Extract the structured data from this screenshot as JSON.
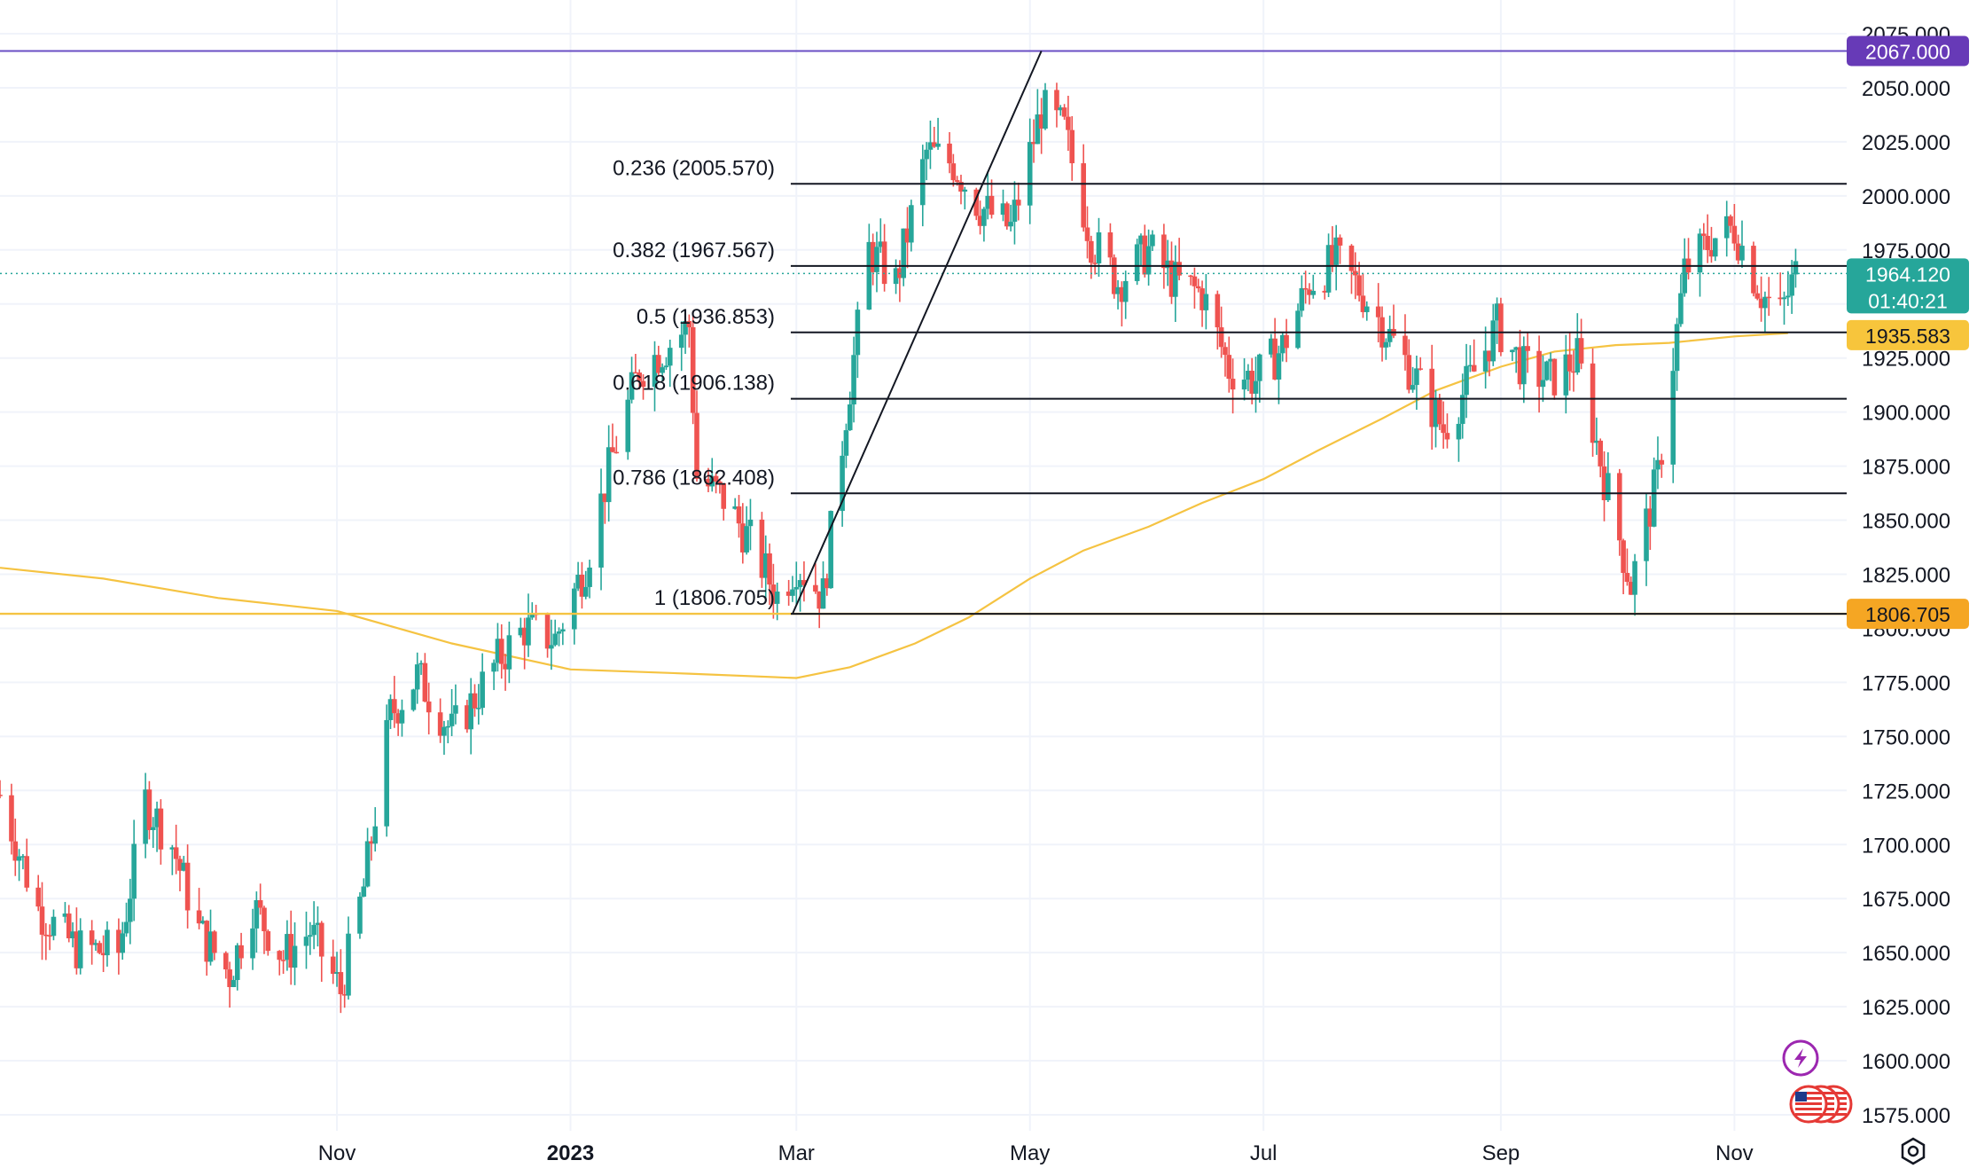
{
  "colors": {
    "up": "#26a69a",
    "down": "#ef5350",
    "ma": "#f5c342",
    "fib": "#131722",
    "high_line": "#6a4fc4",
    "grid": "#f0f3fa",
    "price_badge": "#26a69a",
    "ma_badge": "#f7c53c",
    "low_badge": "#f5a623",
    "high_badge": "#673ab7"
  },
  "icons": {
    "lightning": "lightning-icon",
    "flag": "us-flag-icon",
    "settings": "gear-icon"
  },
  "chart_data": {
    "type": "candlestick",
    "instrument_note": "",
    "y_axis": {
      "ticks": [
        "1575.000",
        "1600.000",
        "1625.000",
        "1650.000",
        "1675.000",
        "1700.000",
        "1725.000",
        "1750.000",
        "1775.000",
        "1800.000",
        "1825.000",
        "1850.000",
        "1875.000",
        "1900.000",
        "1925.000",
        "1950.000",
        "1975.000",
        "2000.000",
        "2025.000",
        "2050.000",
        "2075.000"
      ],
      "ylim": [
        1570,
        2085
      ]
    },
    "x_axis": {
      "ticks": [
        {
          "label": "Nov",
          "date": "2022-11-01",
          "bold": false
        },
        {
          "label": "2023",
          "date": "2023-01-01",
          "bold": true
        },
        {
          "label": "Mar",
          "date": "2023-03-01",
          "bold": false
        },
        {
          "label": "May",
          "date": "2023-05-01",
          "bold": false
        },
        {
          "label": "Jul",
          "date": "2023-07-01",
          "bold": false
        },
        {
          "label": "Sep",
          "date": "2023-09-01",
          "bold": false
        },
        {
          "label": "Nov",
          "date": "2023-11-01",
          "bold": false
        }
      ],
      "xlim": [
        "2022-08-05",
        "2023-11-25"
      ]
    },
    "fibonacci": {
      "from": {
        "date": "2023-02-28",
        "price": 1806.705
      },
      "to": {
        "date": "2023-05-04",
        "price": 2067.0
      },
      "levels": [
        {
          "ratio": "0.236",
          "price": 2005.57,
          "label": "0.236 (2005.570)"
        },
        {
          "ratio": "0.382",
          "price": 1967.567,
          "label": "0.382 (1967.567)"
        },
        {
          "ratio": "0.5",
          "price": 1936.853,
          "label": "0.5 (1936.853)"
        },
        {
          "ratio": "0.618",
          "price": 1906.138,
          "label": "0.618 (1906.138)"
        },
        {
          "ratio": "0.786",
          "price": 1862.408,
          "label": "0.786 (1862.408)"
        },
        {
          "ratio": "1",
          "price": 1806.705,
          "label": "1 (1806.705)"
        }
      ]
    },
    "horizontal_lines": [
      {
        "name": "high",
        "price": 2067.0
      },
      {
        "name": "low",
        "price": 1806.705
      }
    ],
    "current_price": {
      "value": 1964.12,
      "label": "1964.120",
      "countdown": "01:40:21"
    },
    "ma_last": {
      "value": 1935.583,
      "label": "1935.583"
    },
    "high_label": "2067.000",
    "low_label": "1806.705",
    "ma_series": [
      [
        "2022-08-05",
        1828
      ],
      [
        "2022-09-01",
        1823
      ],
      [
        "2022-10-01",
        1814
      ],
      [
        "2022-11-01",
        1808
      ],
      [
        "2022-12-01",
        1793
      ],
      [
        "2023-01-01",
        1781
      ],
      [
        "2023-02-01",
        1779
      ],
      [
        "2023-03-01",
        1777
      ],
      [
        "2023-03-15",
        1782
      ],
      [
        "2023-04-01",
        1793
      ],
      [
        "2023-04-15",
        1805
      ],
      [
        "2023-05-01",
        1823
      ],
      [
        "2023-05-15",
        1836
      ],
      [
        "2023-06-01",
        1847
      ],
      [
        "2023-06-15",
        1858
      ],
      [
        "2023-07-01",
        1869
      ],
      [
        "2023-07-15",
        1882
      ],
      [
        "2023-08-01",
        1897
      ],
      [
        "2023-08-15",
        1910
      ],
      [
        "2023-09-01",
        1921
      ],
      [
        "2023-09-15",
        1928
      ],
      [
        "2023-10-01",
        1931
      ],
      [
        "2023-10-15",
        1932
      ],
      [
        "2023-11-01",
        1935
      ],
      [
        "2023-11-15",
        1936.5
      ]
    ],
    "candles_anchor": [
      [
        "2022-08-05",
        1723
      ],
      [
        "2022-08-15",
        1670
      ],
      [
        "2022-08-25",
        1652
      ],
      [
        "2022-09-05",
        1650
      ],
      [
        "2022-09-12",
        1720
      ],
      [
        "2022-09-19",
        1700
      ],
      [
        "2022-09-26",
        1660
      ],
      [
        "2022-10-04",
        1640
      ],
      [
        "2022-10-10",
        1672
      ],
      [
        "2022-10-18",
        1648
      ],
      [
        "2022-10-25",
        1660
      ],
      [
        "2022-11-02",
        1632
      ],
      [
        "2022-11-08",
        1680
      ],
      [
        "2022-11-15",
        1760
      ],
      [
        "2022-11-22",
        1778
      ],
      [
        "2022-12-01",
        1752
      ],
      [
        "2022-12-06",
        1765
      ],
      [
        "2022-12-13",
        1785
      ],
      [
        "2022-12-20",
        1800
      ],
      [
        "2022-12-28",
        1795
      ],
      [
        "2023-01-05",
        1830
      ],
      [
        "2023-01-12",
        1880
      ],
      [
        "2023-01-19",
        1920
      ],
      [
        "2023-01-26",
        1930
      ],
      [
        "2023-02-01",
        1940
      ],
      [
        "2023-02-03",
        1870
      ],
      [
        "2023-02-10",
        1860
      ],
      [
        "2023-02-17",
        1840
      ],
      [
        "2023-02-24",
        1815
      ],
      [
        "2023-03-01",
        1830
      ],
      [
        "2023-03-08",
        1815
      ],
      [
        "2023-03-14",
        1900
      ],
      [
        "2023-03-20",
        1975
      ],
      [
        "2023-03-27",
        1960
      ],
      [
        "2023-04-04",
        2020
      ],
      [
        "2023-04-11",
        2015
      ],
      [
        "2023-04-18",
        1995
      ],
      [
        "2023-04-26",
        1985
      ],
      [
        "2023-05-04",
        2040
      ],
      [
        "2023-05-10",
        2030
      ],
      [
        "2023-05-17",
        1980
      ],
      [
        "2023-05-24",
        1960
      ],
      [
        "2023-06-01",
        1975
      ],
      [
        "2023-06-08",
        1960
      ],
      [
        "2023-06-15",
        1955
      ],
      [
        "2023-06-22",
        1920
      ],
      [
        "2023-06-29",
        1915
      ],
      [
        "2023-07-06",
        1930
      ],
      [
        "2023-07-13",
        1960
      ],
      [
        "2023-07-20",
        1970
      ],
      [
        "2023-07-27",
        1955
      ],
      [
        "2023-08-03",
        1935
      ],
      [
        "2023-08-10",
        1915
      ],
      [
        "2023-08-17",
        1892
      ],
      [
        "2023-08-24",
        1915
      ],
      [
        "2023-08-31",
        1940
      ],
      [
        "2023-09-07",
        1920
      ],
      [
        "2023-09-14",
        1915
      ],
      [
        "2023-09-21",
        1925
      ],
      [
        "2023-09-28",
        1870
      ],
      [
        "2023-10-05",
        1820
      ],
      [
        "2023-10-12",
        1870
      ],
      [
        "2023-10-19",
        1965
      ],
      [
        "2023-10-26",
        1980
      ],
      [
        "2023-11-01",
        1985
      ],
      [
        "2023-11-08",
        1955
      ],
      [
        "2023-11-13",
        1945
      ],
      [
        "2023-11-17",
        1964
      ]
    ]
  }
}
